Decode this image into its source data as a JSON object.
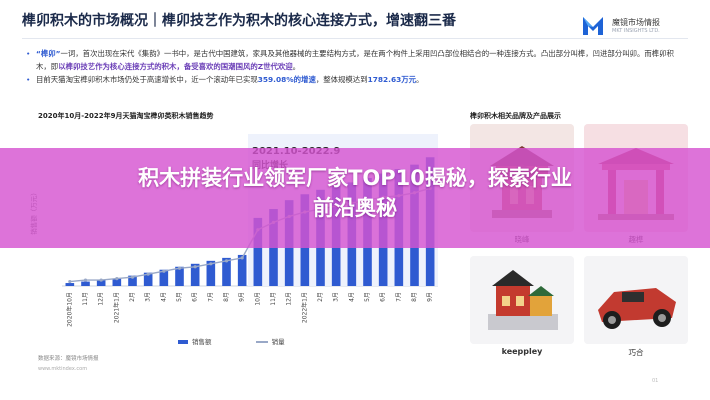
{
  "slide": {
    "title": "榫卯积木的市场概况｜榫卯技艺作为积木的核心连接方式，增速翻三番",
    "logo": {
      "brand": "魔镜市场情报",
      "sub": "MKT INSIGHTS LTD.",
      "color": "#1e63d6"
    }
  },
  "bullets": {
    "b1_a": "“榫卯”",
    "b1_b": "一词，首次出现在宋代《集韵》一书中，是古代中国建筑，家具及其他器械的主要结构方式，是在两个构件上采用凹凸部位相结合的一种连接方式。凸出部分叫榫，凹进部分叫卯。而榫卯积木，即",
    "b1_c": "以榫卯技艺作为核心连接方式的积木，备受喜欢的国潮国风的Z世代欢迎",
    "b1_d": "。",
    "b2_a": "目前天猫淘宝榫卯积木市场仍处于高速增长中，近一个滚动年已实现",
    "b2_b": "359.08%的增速",
    "b2_c": "，整体规模达到",
    "b2_d": "1782.63万元",
    "b2_e": "。"
  },
  "chart_section": {
    "title": "2020年10月-2022年9月天猫淘宝榫卯类积木销售趋势",
    "annotation": "2021.10-2022.9",
    "annotation2": "同比增长",
    "ylabel": "销售额（万元）",
    "legend_bar": "销售额",
    "legend_line": "销量",
    "source": "数据来源：魔镜市场情报",
    "source2": "www.mktindex.com"
  },
  "chart_data": {
    "type": "bar",
    "categories": [
      "2020年10月",
      "11月",
      "12月",
      "2021年1月",
      "2月",
      "3月",
      "4月",
      "5月",
      "6月",
      "7月",
      "8月",
      "9月",
      "10月",
      "11月",
      "12月",
      "2022年1月",
      "2月",
      "3月",
      "4月",
      "5月",
      "6月",
      "7月",
      "8月",
      "9月"
    ],
    "series": [
      {
        "name": "销售额",
        "type": "bar",
        "color": "#2f5bd1",
        "values": [
          2,
          3,
          4,
          5,
          7,
          9,
          11,
          13,
          15,
          17,
          19,
          21,
          46,
          52,
          58,
          62,
          65,
          68,
          70,
          73,
          76,
          79,
          82,
          87
        ]
      },
      {
        "name": "销量",
        "type": "line",
        "color": "#99a8c7",
        "values": [
          3,
          4,
          4,
          5,
          6,
          8,
          10,
          12,
          13,
          15,
          17,
          19,
          38,
          43,
          47,
          50,
          52,
          54,
          56,
          58,
          60,
          61,
          63,
          66
        ]
      }
    ],
    "highlight_start_index": 12,
    "ylim": [
      0,
      100
    ]
  },
  "products": {
    "title": "榫卯积木相关品牌及产品展示",
    "items": [
      {
        "name": "晓峰"
      },
      {
        "name": "趣榫"
      },
      {
        "name": "keeppley"
      },
      {
        "name": "巧合"
      }
    ]
  },
  "page": {
    "number": "01"
  },
  "banner": {
    "line1": "积木拼装行业领军厂家TOP10揭秘，探索行业",
    "line2": "前沿奥秘"
  }
}
